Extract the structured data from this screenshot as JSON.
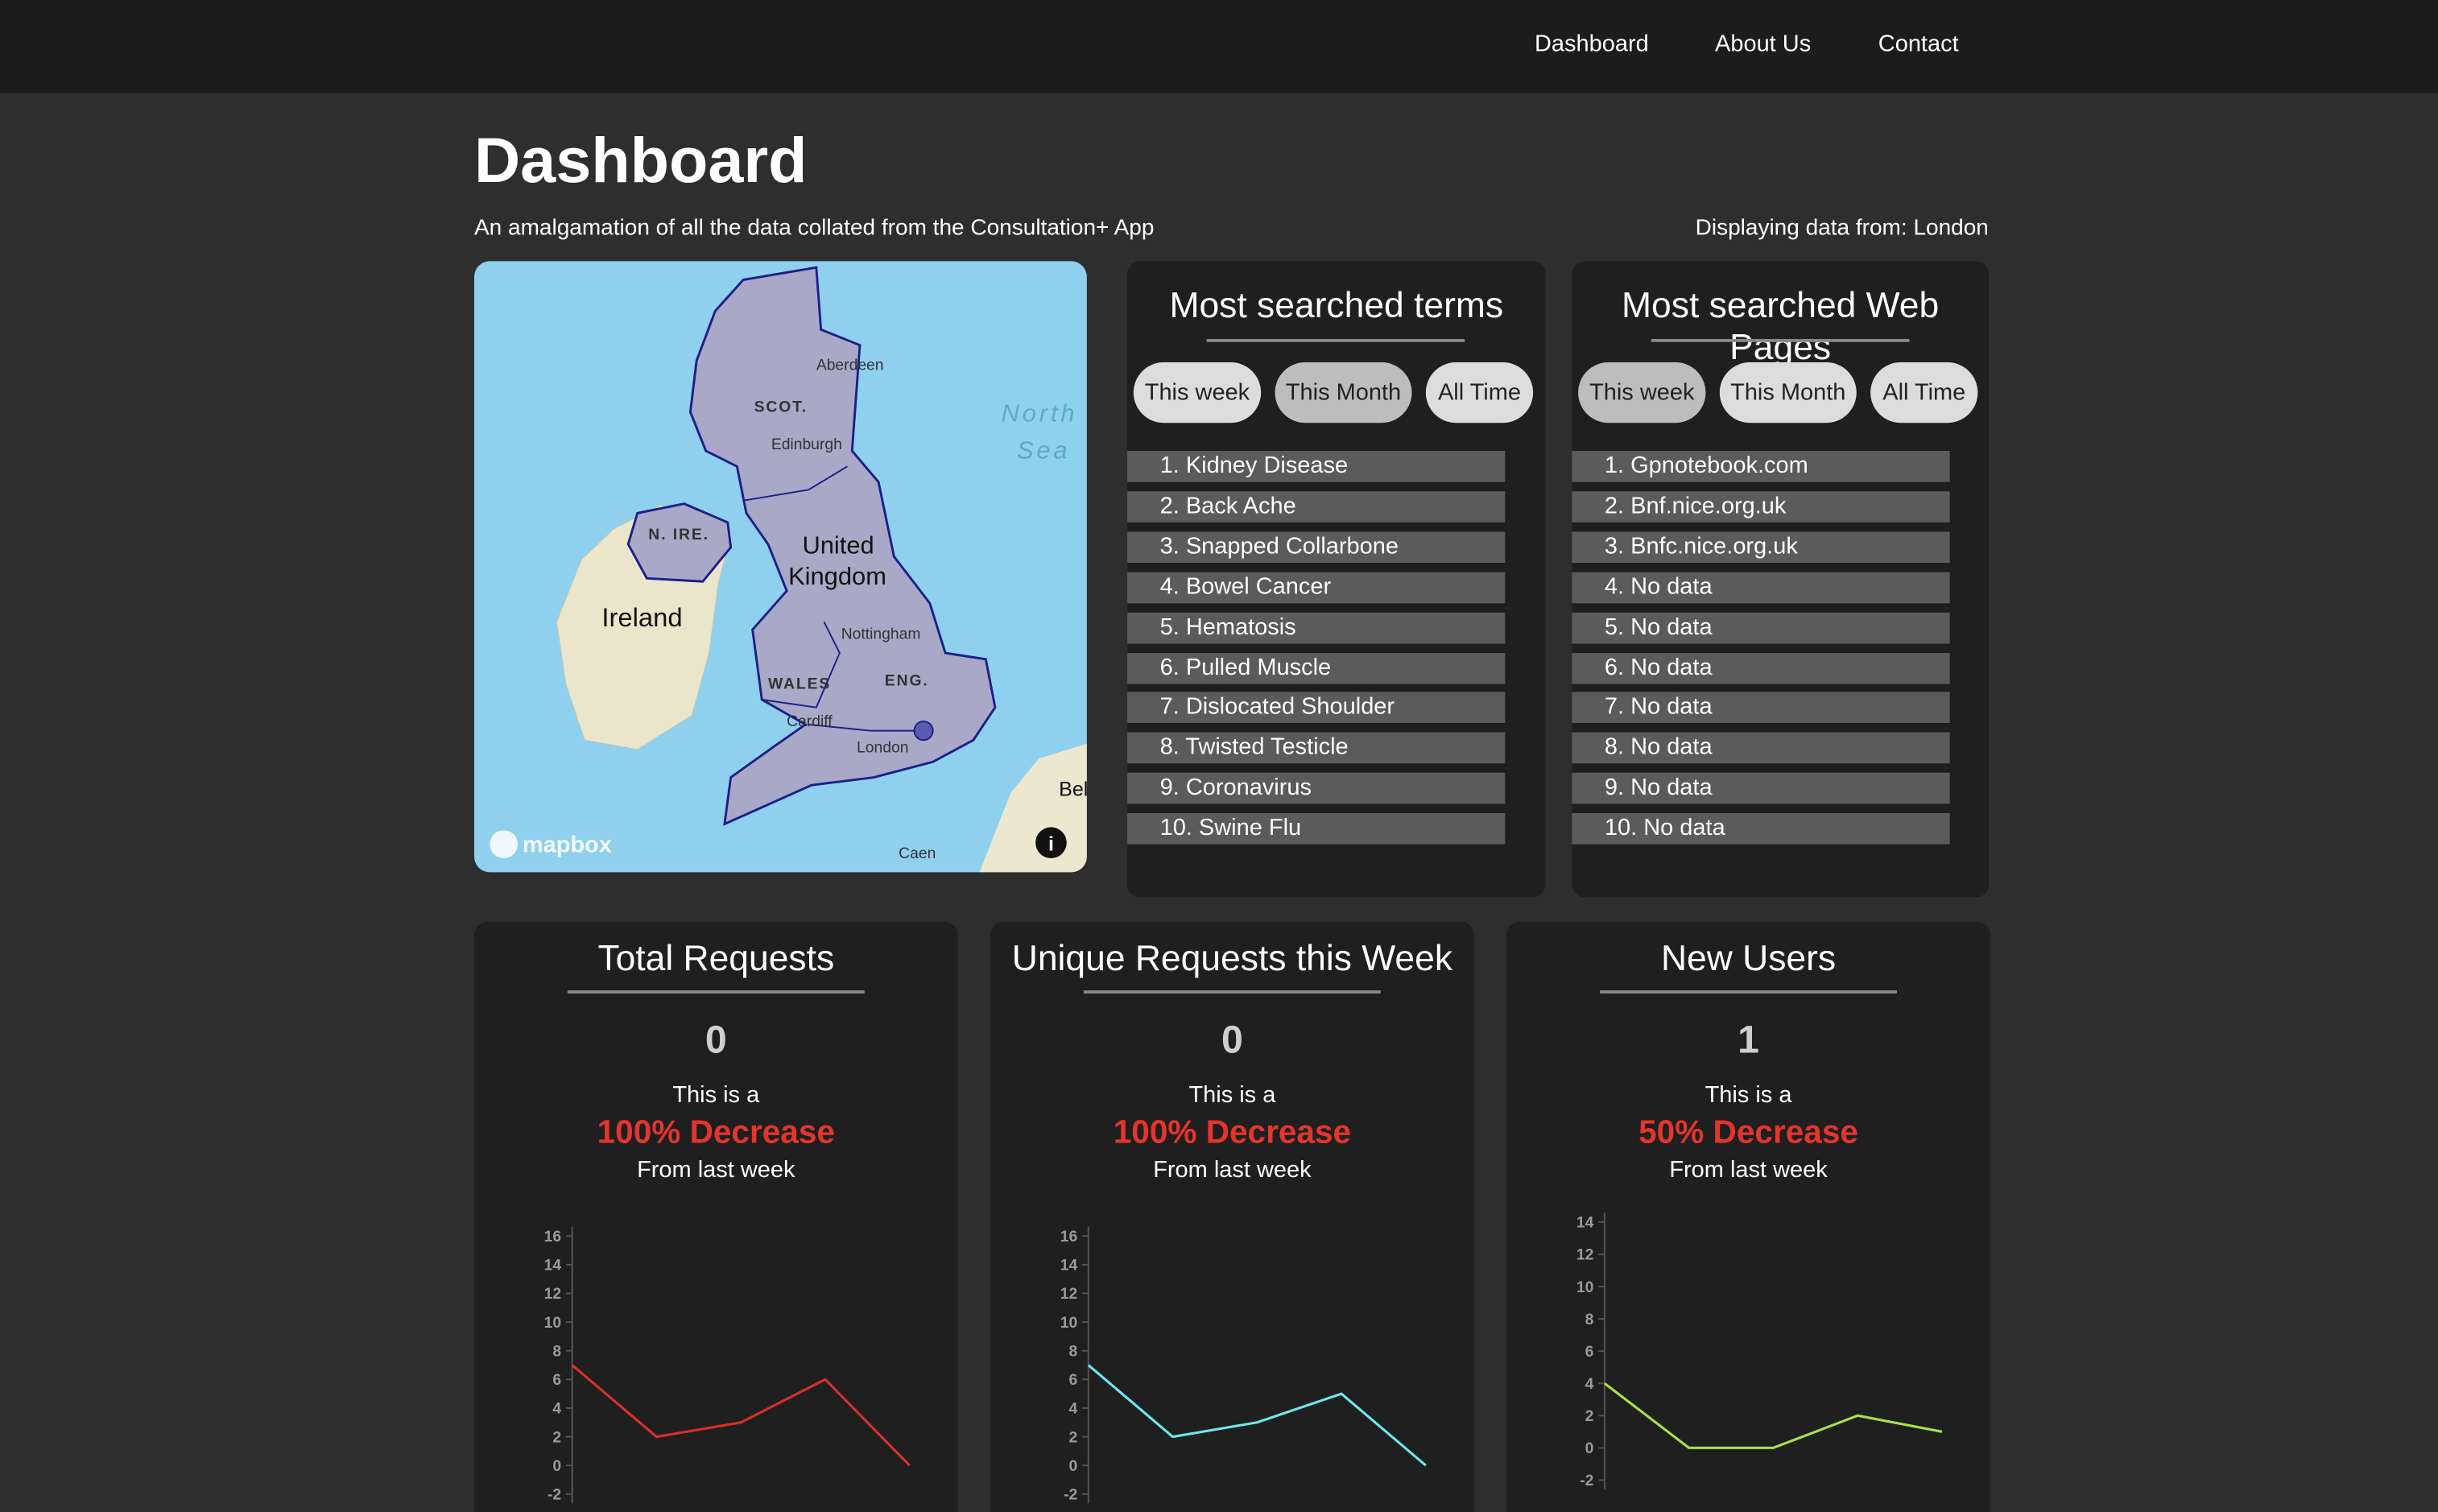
{
  "nav": [
    "Dashboard",
    "About Us",
    "Contact"
  ],
  "header": {
    "title": "Dashboard",
    "subtitle": "An amalgamation of all the data collated from the Consultation+ App",
    "location": "Displaying data from: London"
  },
  "map": {
    "labels": [
      "Aberdeen",
      "SCOT.",
      "Edinburgh",
      "North",
      "Sea",
      "N. IRE.",
      "United",
      "Kingdom",
      "Ireland",
      "Nottingham",
      "WALES",
      "ENG.",
      "Cardiff",
      "London",
      "Caen",
      "Bel",
      "mapbox"
    ]
  },
  "lists": [
    {
      "title": "Most searched terms",
      "tabs": [
        "This week",
        "This Month",
        "All Time"
      ],
      "items": [
        "1. Kidney Disease",
        "2. Back Ache",
        "3. Snapped Collarbone",
        "4. Bowel Cancer",
        "5. Hematosis",
        "6. Pulled Muscle",
        "7. Dislocated Shoulder",
        "8. Twisted Testicle",
        "9. Coronavirus",
        "10. Swine Flu"
      ]
    },
    {
      "title": "Most searched Web Pages",
      "tabs": [
        "This week",
        "This Month",
        "All Time"
      ],
      "items": [
        "1. Gpnotebook.com",
        "2. Bnf.nice.org.uk",
        "3. Bnfc.nice.org.uk",
        "4. No data",
        "5. No data",
        "6. No data",
        "7. No data",
        "8. No data",
        "9. No data",
        "10. No data"
      ]
    }
  ],
  "cards": [
    {
      "title": "Total Requests",
      "value": 0,
      "prefix": "This is a",
      "change": "100% Decrease",
      "suffix": "From last week",
      "chart": {
        "type": "line",
        "color": "#d9302a",
        "values": [
          7,
          2,
          3,
          6,
          0
        ],
        "ylim": [
          -2,
          16
        ],
        "yticks": [
          -2,
          0,
          2,
          4,
          6,
          8,
          10,
          12,
          14,
          16
        ]
      }
    },
    {
      "title": "Unique Requests this Week",
      "value": 0,
      "prefix": "This is a",
      "change": "100% Decrease",
      "suffix": "From last week",
      "chart": {
        "type": "line",
        "color": "#6fe6ee",
        "values": [
          7,
          2,
          3,
          5,
          0
        ],
        "ylim": [
          -2,
          16
        ],
        "yticks": [
          -2,
          0,
          2,
          4,
          6,
          8,
          10,
          12,
          14,
          16
        ]
      }
    },
    {
      "title": "New Users",
      "value": 1,
      "prefix": "This is a",
      "change": "50% Decrease",
      "suffix": "From last week",
      "chart": {
        "type": "line",
        "color": "#a6e24a",
        "values": [
          4,
          0,
          0,
          2,
          1
        ],
        "ylim": [
          -2,
          14
        ],
        "yticks": [
          -2,
          0,
          2,
          4,
          6,
          8,
          10,
          12,
          14
        ]
      }
    }
  ]
}
